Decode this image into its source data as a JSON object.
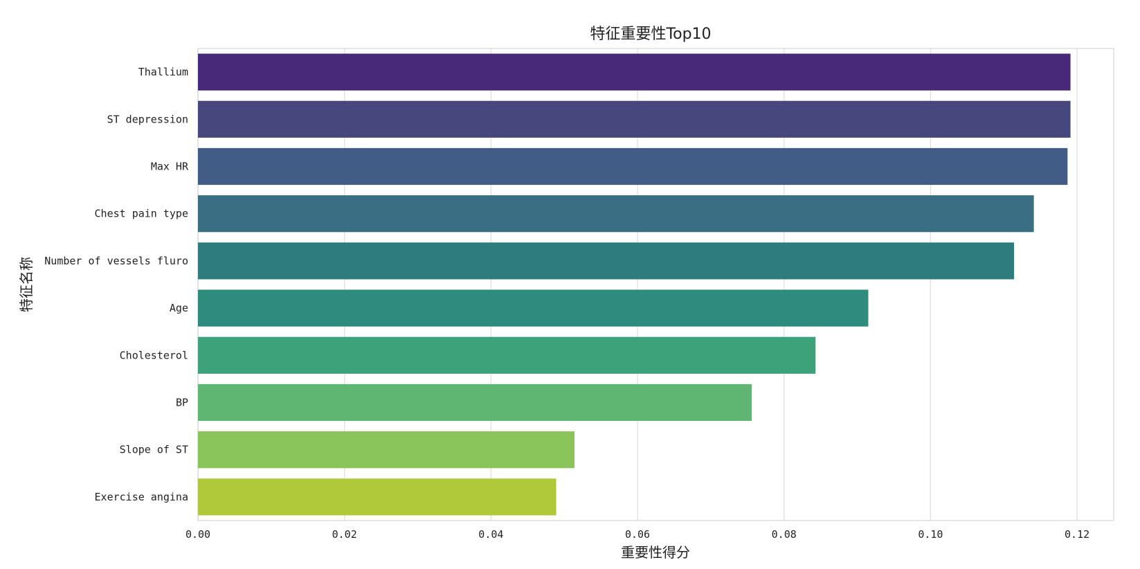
{
  "chart_data": {
    "type": "bar",
    "orientation": "horizontal",
    "title": "特征重要性Top10",
    "xlabel": "重要性得分",
    "ylabel": "特征名称",
    "categories": [
      "Thallium",
      "ST depression",
      "Max HR",
      "Chest pain type",
      "Number of vessels fluro",
      "Age",
      "Cholesterol",
      "BP",
      "Slope of ST",
      "Exercise angina"
    ],
    "values": [
      0.1191,
      0.1191,
      0.1187,
      0.1141,
      0.1114,
      0.0915,
      0.0843,
      0.0756,
      0.0514,
      0.0489
    ],
    "colors": [
      "#482878",
      "#46477d",
      "#425d85",
      "#3a6e82",
      "#2f7c7f",
      "#2e8b7e",
      "#3da17a",
      "#5fb673",
      "#8ac55c",
      "#b0c93a"
    ],
    "xlim": [
      0,
      0.125
    ],
    "xticks": [
      0.0,
      0.02,
      0.04,
      0.06,
      0.08,
      0.1,
      0.12
    ],
    "xtick_labels": [
      "0.00",
      "0.02",
      "0.04",
      "0.06",
      "0.08",
      "0.10",
      "0.12"
    ],
    "grid": "vertical",
    "legend": "none"
  }
}
